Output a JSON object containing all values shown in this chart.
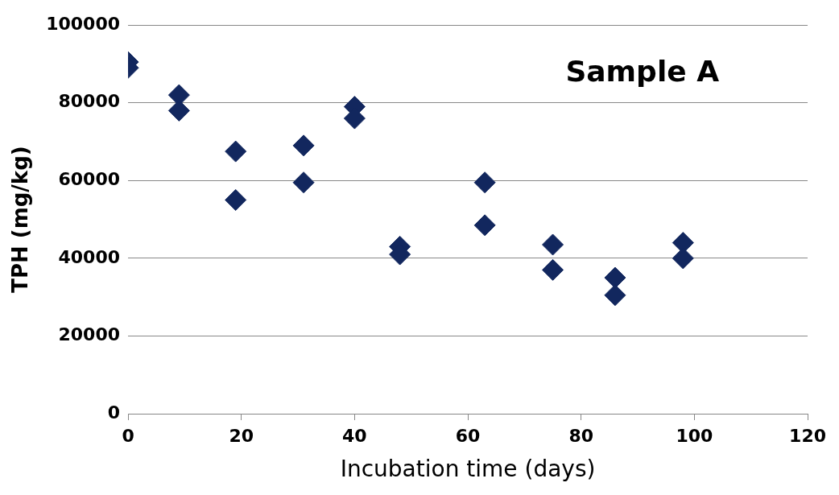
{
  "chart_data": {
    "type": "scatter",
    "xlabel": "Incubation time (days)",
    "ylabel": "TPH (mg/kg)",
    "annotations": [
      "Sample A"
    ],
    "x": [
      0,
      0,
      9,
      9,
      19,
      19,
      31,
      31,
      40,
      40,
      48,
      48,
      63,
      63,
      75,
      75,
      86,
      86,
      98,
      98
    ],
    "series": [
      {
        "color": "#12275e",
        "values": [
          90500,
          89000,
          82000,
          78000,
          67500,
          55000,
          69000,
          59500,
          79000,
          76000,
          43000,
          41000,
          59500,
          48500,
          43500,
          37000,
          35000,
          30500,
          44000,
          40000
        ]
      }
    ],
    "xlim": [
      0,
      120
    ],
    "xticks": [
      0,
      20,
      40,
      60,
      80,
      100,
      120
    ],
    "ylim": [
      0,
      100000
    ],
    "yticks": [
      0,
      20000,
      40000,
      60000,
      80000,
      100000
    ],
    "grid": "y",
    "legend": false,
    "marker": "diamond"
  }
}
